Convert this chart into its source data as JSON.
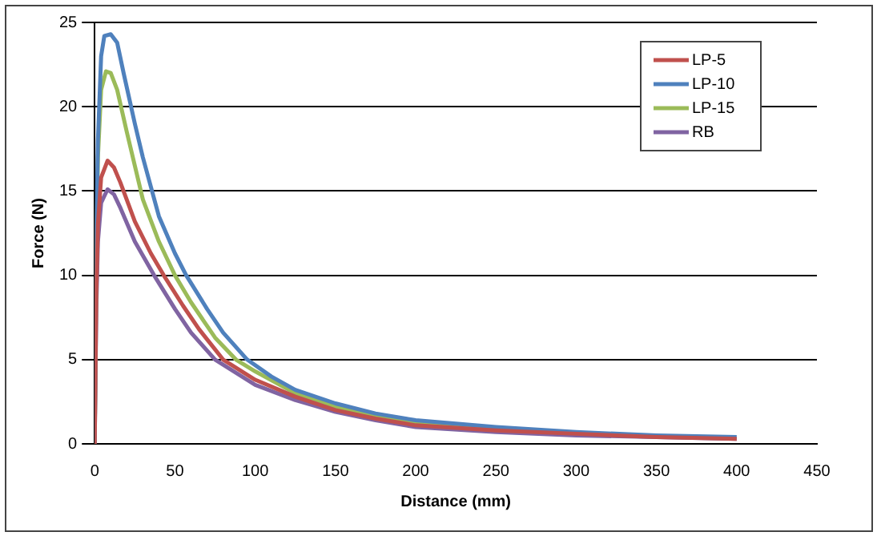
{
  "chart_data": {
    "type": "line",
    "xlabel": "Distance (mm)",
    "ylabel": "Force (N)",
    "xlim": [
      0,
      450
    ],
    "xticks": [
      0,
      50,
      100,
      150,
      200,
      250,
      300,
      350,
      400,
      450
    ],
    "ylim": [
      0,
      25
    ],
    "yticks": [
      0,
      5,
      10,
      15,
      20,
      25
    ],
    "grid": "y",
    "legend": "top right",
    "marker": "none",
    "line_style": "solid",
    "series": [
      {
        "name": "LP-5",
        "color": "#c0504d",
        "x": [
          0,
          1,
          2,
          4,
          8,
          12,
          16,
          25,
          35,
          43,
          55,
          65,
          80,
          100,
          125,
          150,
          175,
          200,
          250,
          300,
          350,
          400
        ],
        "values": [
          0,
          9,
          13,
          15.8,
          16.8,
          16.4,
          15.5,
          13.2,
          11.3,
          10,
          8.2,
          6.8,
          5,
          3.8,
          2.8,
          2.0,
          1.5,
          1.1,
          0.8,
          0.6,
          0.4,
          0.3
        ]
      },
      {
        "name": "LP-10",
        "color": "#4f81bd",
        "x": [
          0,
          1,
          2,
          4,
          6,
          10,
          14,
          18,
          25,
          30,
          40,
          50,
          57,
          70,
          80,
          95,
          110,
          125,
          150,
          175,
          200,
          250,
          300,
          350,
          400
        ],
        "values": [
          0,
          12,
          18,
          23,
          24.2,
          24.3,
          23.8,
          22,
          19,
          17,
          13.5,
          11.3,
          10,
          8,
          6.6,
          5,
          4.0,
          3.2,
          2.4,
          1.8,
          1.4,
          1.0,
          0.7,
          0.5,
          0.4
        ]
      },
      {
        "name": "LP-15",
        "color": "#9bbb59",
        "x": [
          0,
          1,
          2,
          4,
          7,
          10,
          14,
          20,
          30,
          40,
          50,
          60,
          75,
          88,
          100,
          125,
          150,
          175,
          200,
          250
        ],
        "values": [
          0,
          11,
          17,
          21,
          22.1,
          22,
          21,
          18.5,
          14.5,
          12,
          10,
          8.4,
          6.3,
          5,
          4.3,
          3,
          2.2,
          1.7,
          1.2,
          0.9
        ]
      },
      {
        "name": "RB",
        "color": "#8064a2",
        "x": [
          0,
          1,
          2,
          4,
          8,
          12,
          16,
          25,
          37,
          50,
          60,
          75,
          100,
          125,
          150,
          175,
          200,
          250,
          300,
          350,
          400
        ],
        "values": [
          0,
          8,
          12,
          14.3,
          15.1,
          14.8,
          14,
          12,
          10,
          8,
          6.6,
          5,
          3.5,
          2.6,
          1.9,
          1.4,
          1.0,
          0.7,
          0.5,
          0.4,
          0.3
        ]
      }
    ]
  }
}
